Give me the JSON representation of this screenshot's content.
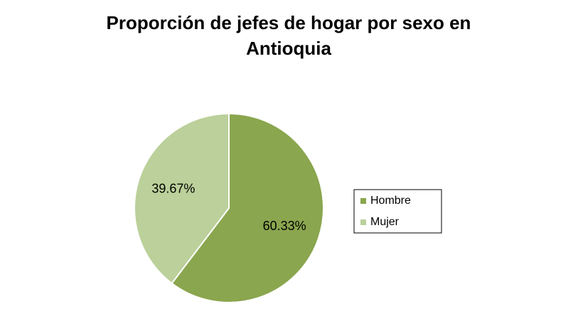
{
  "chart_data": {
    "type": "pie",
    "title": "Proporción de jefes de hogar por sexo en Antioquia",
    "categories": [
      "Hombre",
      "Mujer"
    ],
    "values": [
      60.33,
      39.67
    ],
    "value_labels": [
      "60.33%",
      "39.67%"
    ],
    "colors": [
      "#8aa64e",
      "#bbd09a"
    ],
    "legend": "right"
  }
}
